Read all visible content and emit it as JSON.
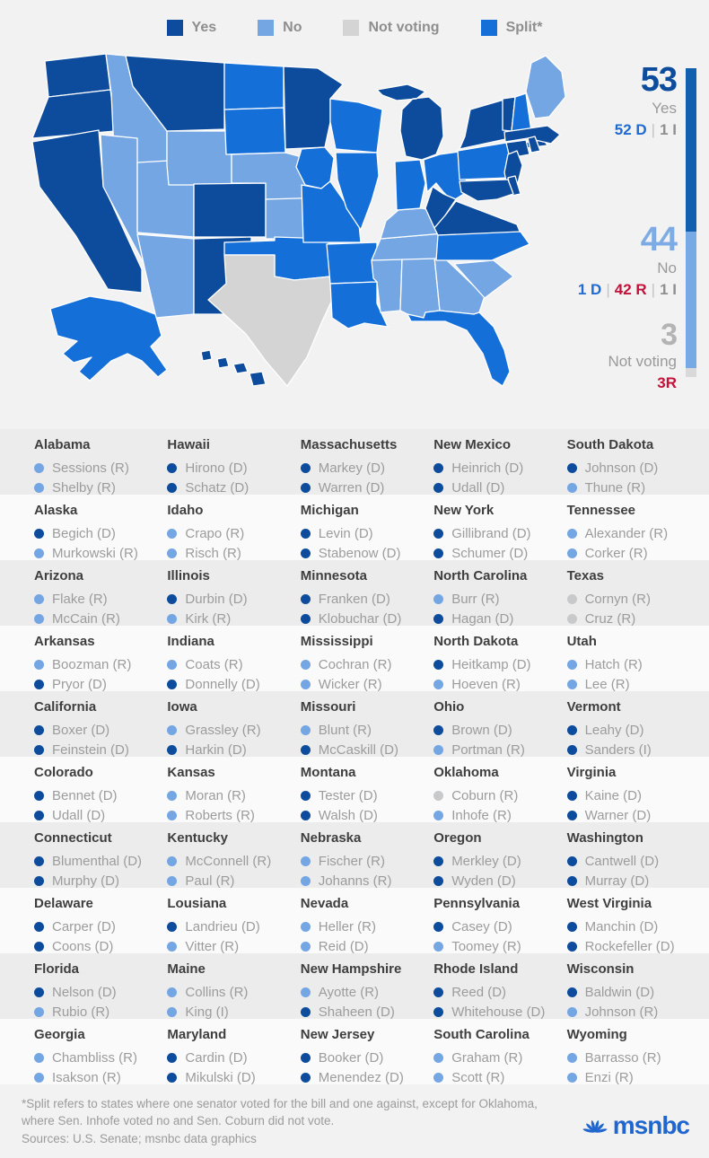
{
  "colors": {
    "yes": "#0d4c9c",
    "no": "#74a6e3",
    "not_voting": "#d4d4d4",
    "split": "#156fd9",
    "dot_yes": "#0d4c9c",
    "dot_no": "#74a6e3",
    "dot_not_voting": "#c7c9cb",
    "bar_yes": "#1160b0",
    "bar_no": "#77aae5",
    "bar_not_voting": "#d9d9d9",
    "count_yes": "#0d4c9c",
    "count_no": "#7fabe4",
    "count_not_voting": "#b3b3b3",
    "logo_blue": "#1f66cf"
  },
  "legend": {
    "items": [
      {
        "key": "yes",
        "label": "Yes"
      },
      {
        "key": "no",
        "label": "No"
      },
      {
        "key": "not_voting",
        "label": "Not voting"
      },
      {
        "key": "split",
        "label": "Split*"
      }
    ]
  },
  "summary": {
    "yes": {
      "count": "53",
      "label": "Yes",
      "parts": [
        {
          "text": "52 D",
          "cls": "blue"
        },
        {
          "text": "1 I",
          "cls": "gray"
        }
      ]
    },
    "no": {
      "count": "44",
      "label": "No",
      "parts": [
        {
          "text": "1 D",
          "cls": "blue"
        },
        {
          "text": "42 R",
          "cls": "red"
        },
        {
          "text": "1 I",
          "cls": "gray"
        }
      ]
    },
    "not_voting": {
      "count": "3",
      "label": "Not voting",
      "parts": [
        {
          "text": "3R",
          "cls": "red"
        }
      ]
    }
  },
  "chart_data": {
    "type": "choropleth",
    "legend_labels": [
      "Yes",
      "No",
      "Not voting",
      "Split*"
    ],
    "totals": {
      "yes": 53,
      "no": 44,
      "not_voting": 3
    },
    "yes_breakdown": "52 D | 1 I",
    "no_breakdown": "1 D | 42 R | 1 I",
    "not_voting_breakdown": "3R",
    "stacked_bar": [
      {
        "label": "Yes",
        "value": 53
      },
      {
        "label": "No",
        "value": 44
      },
      {
        "label": "Not voting",
        "value": 3
      }
    ],
    "state_votes": {
      "AL": "no",
      "AK": "split",
      "AZ": "no",
      "AR": "split",
      "CA": "yes",
      "CO": "yes",
      "CT": "yes",
      "DE": "yes",
      "FL": "split",
      "GA": "no",
      "HI": "yes",
      "ID": "no",
      "IL": "split",
      "IN": "split",
      "IA": "split",
      "KS": "no",
      "KY": "no",
      "LA": "split",
      "ME": "no",
      "MD": "yes",
      "MA": "yes",
      "MI": "yes",
      "MN": "yes",
      "MS": "no",
      "MO": "split",
      "MT": "yes",
      "NE": "no",
      "NV": "no",
      "NH": "split",
      "NJ": "yes",
      "NM": "yes",
      "NY": "yes",
      "NC": "split",
      "ND": "split",
      "OH": "split",
      "OK": "split",
      "OR": "yes",
      "PA": "split",
      "RI": "yes",
      "SC": "no",
      "SD": "split",
      "TN": "no",
      "TX": "not_voting",
      "UT": "no",
      "VT": "yes",
      "VA": "yes",
      "WA": "yes",
      "WV": "yes",
      "WI": "split",
      "WY": "no"
    }
  },
  "table": {
    "columns": [
      [
        {
          "state": "Alabama",
          "senators": [
            {
              "name": "Sessions (R)",
              "vote": "no"
            },
            {
              "name": "Shelby (R)",
              "vote": "no"
            }
          ]
        },
        {
          "state": "Alaska",
          "senators": [
            {
              "name": "Begich (D)",
              "vote": "yes"
            },
            {
              "name": "Murkowski (R)",
              "vote": "no"
            }
          ]
        },
        {
          "state": "Arizona",
          "senators": [
            {
              "name": "Flake (R)",
              "vote": "no"
            },
            {
              "name": "McCain (R)",
              "vote": "no"
            }
          ]
        },
        {
          "state": "Arkansas",
          "senators": [
            {
              "name": "Boozman (R)",
              "vote": "no"
            },
            {
              "name": "Pryor (D)",
              "vote": "yes"
            }
          ]
        },
        {
          "state": "California",
          "senators": [
            {
              "name": "Boxer (D)",
              "vote": "yes"
            },
            {
              "name": "Feinstein (D)",
              "vote": "yes"
            }
          ]
        },
        {
          "state": "Colorado",
          "senators": [
            {
              "name": "Bennet (D)",
              "vote": "yes"
            },
            {
              "name": "Udall (D)",
              "vote": "yes"
            }
          ]
        },
        {
          "state": "Connecticut",
          "senators": [
            {
              "name": "Blumenthal (D)",
              "vote": "yes"
            },
            {
              "name": "Murphy (D)",
              "vote": "yes"
            }
          ]
        },
        {
          "state": "Delaware",
          "senators": [
            {
              "name": "Carper (D)",
              "vote": "yes"
            },
            {
              "name": "Coons (D)",
              "vote": "yes"
            }
          ]
        },
        {
          "state": "Florida",
          "senators": [
            {
              "name": "Nelson (D)",
              "vote": "yes"
            },
            {
              "name": "Rubio (R)",
              "vote": "no"
            }
          ]
        },
        {
          "state": "Georgia",
          "senators": [
            {
              "name": "Chambliss (R)",
              "vote": "no"
            },
            {
              "name": "Isakson (R)",
              "vote": "no"
            }
          ]
        }
      ],
      [
        {
          "state": "Hawaii",
          "senators": [
            {
              "name": "Hirono (D)",
              "vote": "yes"
            },
            {
              "name": "Schatz (D)",
              "vote": "yes"
            }
          ]
        },
        {
          "state": "Idaho",
          "senators": [
            {
              "name": "Crapo (R)",
              "vote": "no"
            },
            {
              "name": "Risch (R)",
              "vote": "no"
            }
          ]
        },
        {
          "state": "Illinois",
          "senators": [
            {
              "name": "Durbin (D)",
              "vote": "yes"
            },
            {
              "name": "Kirk (R)",
              "vote": "no"
            }
          ]
        },
        {
          "state": "Indiana",
          "senators": [
            {
              "name": "Coats (R)",
              "vote": "no"
            },
            {
              "name": "Donnelly (D)",
              "vote": "yes"
            }
          ]
        },
        {
          "state": "Iowa",
          "senators": [
            {
              "name": "Grassley (R)",
              "vote": "no"
            },
            {
              "name": "Harkin (D)",
              "vote": "yes"
            }
          ]
        },
        {
          "state": "Kansas",
          "senators": [
            {
              "name": "Moran (R)",
              "vote": "no"
            },
            {
              "name": "Roberts (R)",
              "vote": "no"
            }
          ]
        },
        {
          "state": "Kentucky",
          "senators": [
            {
              "name": "McConnell (R)",
              "vote": "no"
            },
            {
              "name": "Paul (R)",
              "vote": "no"
            }
          ]
        },
        {
          "state": "Lousiana",
          "senators": [
            {
              "name": "Landrieu (D)",
              "vote": "yes"
            },
            {
              "name": "Vitter (R)",
              "vote": "no"
            }
          ]
        },
        {
          "state": "Maine",
          "senators": [
            {
              "name": "Collins (R)",
              "vote": "no"
            },
            {
              "name": "King (I)",
              "vote": "no"
            }
          ]
        },
        {
          "state": "Maryland",
          "senators": [
            {
              "name": "Cardin (D)",
              "vote": "yes"
            },
            {
              "name": "Mikulski (D)",
              "vote": "yes"
            }
          ]
        }
      ],
      [
        {
          "state": "Massachusetts",
          "senators": [
            {
              "name": "Markey (D)",
              "vote": "yes"
            },
            {
              "name": "Warren (D)",
              "vote": "yes"
            }
          ]
        },
        {
          "state": "Michigan",
          "senators": [
            {
              "name": "Levin (D)",
              "vote": "yes"
            },
            {
              "name": "Stabenow (D)",
              "vote": "yes"
            }
          ]
        },
        {
          "state": "Minnesota",
          "senators": [
            {
              "name": "Franken (D)",
              "vote": "yes"
            },
            {
              "name": "Klobuchar (D)",
              "vote": "yes"
            }
          ]
        },
        {
          "state": "Mississippi",
          "senators": [
            {
              "name": "Cochran (R)",
              "vote": "no"
            },
            {
              "name": "Wicker (R)",
              "vote": "no"
            }
          ]
        },
        {
          "state": "Missouri",
          "senators": [
            {
              "name": "Blunt (R)",
              "vote": "no"
            },
            {
              "name": "McCaskill (D)",
              "vote": "yes"
            }
          ]
        },
        {
          "state": "Montana",
          "senators": [
            {
              "name": "Tester (D)",
              "vote": "yes"
            },
            {
              "name": "Walsh (D)",
              "vote": "yes"
            }
          ]
        },
        {
          "state": "Nebraska",
          "senators": [
            {
              "name": "Fischer (R)",
              "vote": "no"
            },
            {
              "name": "Johanns (R)",
              "vote": "no"
            }
          ]
        },
        {
          "state": "Nevada",
          "senators": [
            {
              "name": "Heller (R)",
              "vote": "no"
            },
            {
              "name": "Reid (D)",
              "vote": "no"
            }
          ]
        },
        {
          "state": "New Hampshire",
          "senators": [
            {
              "name": "Ayotte (R)",
              "vote": "no"
            },
            {
              "name": "Shaheen (D)",
              "vote": "yes"
            }
          ]
        },
        {
          "state": "New Jersey",
          "senators": [
            {
              "name": "Booker (D)",
              "vote": "yes"
            },
            {
              "name": "Menendez (D)",
              "vote": "yes"
            }
          ]
        }
      ],
      [
        {
          "state": "New Mexico",
          "senators": [
            {
              "name": "Heinrich (D)",
              "vote": "yes"
            },
            {
              "name": "Udall (D)",
              "vote": "yes"
            }
          ]
        },
        {
          "state": "New York",
          "senators": [
            {
              "name": "Gillibrand (D)",
              "vote": "yes"
            },
            {
              "name": "Schumer (D)",
              "vote": "yes"
            }
          ]
        },
        {
          "state": "North Carolina",
          "senators": [
            {
              "name": "Burr (R)",
              "vote": "no"
            },
            {
              "name": "Hagan (D)",
              "vote": "yes"
            }
          ]
        },
        {
          "state": "North Dakota",
          "senators": [
            {
              "name": "Heitkamp (D)",
              "vote": "yes"
            },
            {
              "name": "Hoeven (R)",
              "vote": "no"
            }
          ]
        },
        {
          "state": "Ohio",
          "senators": [
            {
              "name": "Brown (D)",
              "vote": "yes"
            },
            {
              "name": "Portman (R)",
              "vote": "no"
            }
          ]
        },
        {
          "state": "Oklahoma",
          "senators": [
            {
              "name": "Coburn (R)",
              "vote": "not_voting"
            },
            {
              "name": "Inhofe (R)",
              "vote": "no"
            }
          ]
        },
        {
          "state": "Oregon",
          "senators": [
            {
              "name": "Merkley (D)",
              "vote": "yes"
            },
            {
              "name": "Wyden (D)",
              "vote": "yes"
            }
          ]
        },
        {
          "state": "Pennsylvania",
          "senators": [
            {
              "name": "Casey (D)",
              "vote": "yes"
            },
            {
              "name": "Toomey (R)",
              "vote": "no"
            }
          ]
        },
        {
          "state": "Rhode Island",
          "senators": [
            {
              "name": "Reed (D)",
              "vote": "yes"
            },
            {
              "name": "Whitehouse (D)",
              "vote": "yes"
            }
          ]
        },
        {
          "state": "South Carolina",
          "senators": [
            {
              "name": "Graham (R)",
              "vote": "no"
            },
            {
              "name": "Scott (R)",
              "vote": "no"
            }
          ]
        }
      ],
      [
        {
          "state": "South Dakota",
          "senators": [
            {
              "name": "Johnson (D)",
              "vote": "yes"
            },
            {
              "name": "Thune (R)",
              "vote": "no"
            }
          ]
        },
        {
          "state": "Tennessee",
          "senators": [
            {
              "name": "Alexander (R)",
              "vote": "no"
            },
            {
              "name": "Corker (R)",
              "vote": "no"
            }
          ]
        },
        {
          "state": "Texas",
          "senators": [
            {
              "name": "Cornyn (R)",
              "vote": "not_voting"
            },
            {
              "name": "Cruz (R)",
              "vote": "not_voting"
            }
          ]
        },
        {
          "state": "Utah",
          "senators": [
            {
              "name": "Hatch (R)",
              "vote": "no"
            },
            {
              "name": "Lee (R)",
              "vote": "no"
            }
          ]
        },
        {
          "state": "Vermont",
          "senators": [
            {
              "name": "Leahy (D)",
              "vote": "yes"
            },
            {
              "name": "Sanders (I)",
              "vote": "yes"
            }
          ]
        },
        {
          "state": "Virginia",
          "senators": [
            {
              "name": "Kaine (D)",
              "vote": "yes"
            },
            {
              "name": "Warner (D)",
              "vote": "yes"
            }
          ]
        },
        {
          "state": "Washington",
          "senators": [
            {
              "name": "Cantwell (D)",
              "vote": "yes"
            },
            {
              "name": "Murray (D)",
              "vote": "yes"
            }
          ]
        },
        {
          "state": "West Virginia",
          "senators": [
            {
              "name": "Manchin (D)",
              "vote": "yes"
            },
            {
              "name": "Rockefeller (D)",
              "vote": "yes"
            }
          ]
        },
        {
          "state": "Wisconsin",
          "senators": [
            {
              "name": "Baldwin (D)",
              "vote": "yes"
            },
            {
              "name": "Johnson (R)",
              "vote": "no"
            }
          ]
        },
        {
          "state": "Wyoming",
          "senators": [
            {
              "name": "Barrasso (R)",
              "vote": "no"
            },
            {
              "name": "Enzi (R)",
              "vote": "no"
            }
          ]
        }
      ]
    ]
  },
  "footnote": {
    "line1": "*Split refers to states where one senator voted for the bill and one against, except for Oklahoma,",
    "line2": "where Sen. Inhofe voted no and Sen. Coburn did not vote."
  },
  "sources": "Sources: U.S. Senate; msnbc data graphics",
  "logo_text": "msnbc"
}
